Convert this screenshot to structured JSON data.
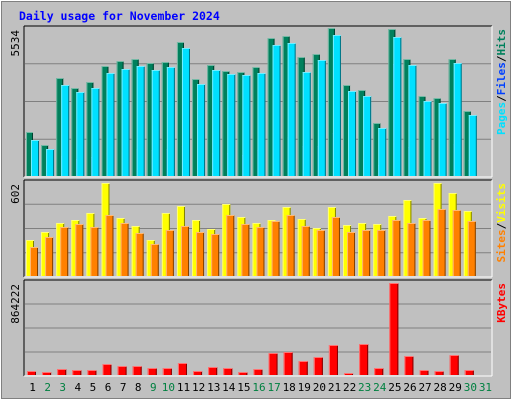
{
  "colors": {
    "background": "#c0c0c0",
    "plot_bg": "#c0c0c0",
    "title": "#0000ff",
    "hits": "#00805c",
    "files": "#0040ff",
    "pages": "#00e0ff",
    "visits": "#ffff00",
    "sites": "#ff8000",
    "kbytes": "#ff0000",
    "weekday_label": "#000000",
    "weekend_label": "#008040"
  },
  "chart_data": [
    {
      "type": "bar",
      "title": "Daily usage for November 2024",
      "panel": "requests",
      "legend": [
        {
          "label": "Hits",
          "color_key": "hits"
        },
        {
          "label": "Files",
          "color_key": "files"
        },
        {
          "label": "Pages",
          "color_key": "pages"
        }
      ],
      "legend_separator": "/",
      "ymax_label": "5534",
      "ylim": [
        0,
        5534
      ],
      "categories": [
        "1",
        "2",
        "3",
        "4",
        "5",
        "6",
        "7",
        "8",
        "9",
        "10",
        "11",
        "12",
        "13",
        "14",
        "15",
        "16",
        "17",
        "18",
        "19",
        "20",
        "21",
        "22",
        "23",
        "24",
        "25",
        "26",
        "27",
        "28",
        "29",
        "30",
        "31"
      ],
      "weekend_days": [
        "2",
        "3",
        "9",
        "10",
        "16",
        "17",
        "23",
        "24",
        "30",
        "31"
      ],
      "series": [
        {
          "name": "Hits",
          "color_key": "hits",
          "values": [
            1673,
            1162,
            3676,
            3303,
            3535,
            4155,
            4339,
            4415,
            4245,
            4309,
            5032,
            3638,
            4183,
            3942,
            3917,
            4103,
            5185,
            5258,
            4475,
            4584,
            5556,
            3419,
            3247,
            2010,
            5534,
            4406,
            3023,
            2924,
            4406,
            2435,
            0
          ]
        },
        {
          "name": "Files",
          "color_key": "files",
          "values": [
            520,
            390,
            750,
            640,
            720,
            880,
            920,
            1000,
            980,
            1020,
            1120,
            780,
            860,
            850,
            800,
            990,
            1450,
            1470,
            1120,
            1130,
            1600,
            680,
            640,
            400,
            4200,
            1100,
            880,
            930,
            1200,
            620,
            0
          ]
        },
        {
          "name": "Pages",
          "color_key": "pages",
          "values": [
            1344,
            1024,
            3442,
            3166,
            3326,
            3895,
            4016,
            4156,
            3976,
            4097,
            4821,
            3459,
            3984,
            3842,
            3797,
            3867,
            4926,
            5025,
            3921,
            4364,
            5303,
            3207,
            3007,
            1810,
            5234,
            4185,
            2821,
            2764,
            4256,
            2284,
            0
          ]
        }
      ]
    },
    {
      "type": "bar",
      "panel": "visits",
      "legend": [
        {
          "label": "Visits",
          "color_key": "visits"
        },
        {
          "label": "Sites",
          "color_key": "sites"
        }
      ],
      "legend_separator": "/",
      "ymax_label": "602",
      "ylim": [
        0,
        602
      ],
      "categories": [
        "1",
        "2",
        "3",
        "4",
        "5",
        "6",
        "7",
        "8",
        "9",
        "10",
        "11",
        "12",
        "13",
        "14",
        "15",
        "16",
        "17",
        "18",
        "19",
        "20",
        "21",
        "22",
        "23",
        "24",
        "25",
        "26",
        "27",
        "28",
        "29",
        "30",
        "31"
      ],
      "series": [
        {
          "name": "Visits",
          "color_key": "visits",
          "values": [
            230,
            285,
            345,
            360,
            405,
            602,
            375,
            321,
            230,
            409,
            450,
            361,
            305,
            467,
            384,
            344,
            365,
            446,
            372,
            310,
            446,
            327,
            341,
            337,
            389,
            492,
            378,
            602,
            537,
            423,
            0
          ]
        },
        {
          "name": "Sites",
          "color_key": "sites",
          "values": [
            186,
            250,
            320,
            334,
            320,
            392,
            345,
            276,
            210,
            300,
            324,
            285,
            272,
            393,
            338,
            320,
            358,
            392,
            325,
            295,
            383,
            285,
            300,
            300,
            365,
            345,
            365,
            433,
            427,
            356,
            0
          ]
        }
      ]
    },
    {
      "type": "bar",
      "panel": "kbytes",
      "legend": [
        {
          "label": "KBytes",
          "color_key": "kbytes"
        }
      ],
      "ymax_label": "864222",
      "ylim": [
        0,
        864222
      ],
      "categories": [
        "1",
        "2",
        "3",
        "4",
        "5",
        "6",
        "7",
        "8",
        "9",
        "10",
        "11",
        "12",
        "13",
        "14",
        "15",
        "16",
        "17",
        "18",
        "19",
        "20",
        "21",
        "22",
        "23",
        "24",
        "25",
        "26",
        "27",
        "28",
        "29",
        "30",
        "31"
      ],
      "series": [
        {
          "name": "KBytes",
          "color_key": "kbytes",
          "values": [
            37500,
            28100,
            56300,
            46900,
            46900,
            103000,
            84400,
            84400,
            65600,
            65600,
            112500,
            37500,
            75000,
            65600,
            28100,
            56300,
            206200,
            215600,
            131200,
            168700,
            281200,
            18800,
            290600,
            65600,
            864222,
            178100,
            46900,
            37500,
            187500,
            46900,
            0
          ]
        }
      ]
    }
  ]
}
